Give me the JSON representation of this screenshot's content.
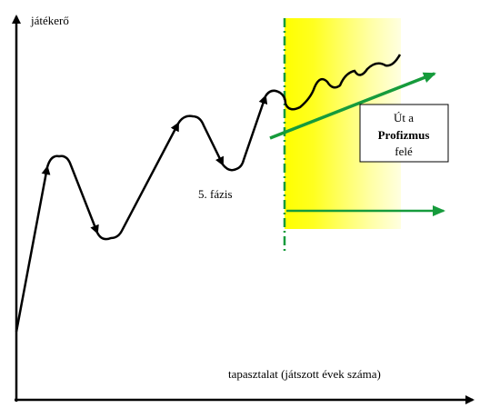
{
  "axes": {
    "y_label": "játékerő",
    "x_label": "tapasztalat (játszott évek száma)"
  },
  "phase_label": "5. fázis",
  "box": {
    "lines": [
      "Út a",
      "Profizmus",
      "felé"
    ]
  }
}
